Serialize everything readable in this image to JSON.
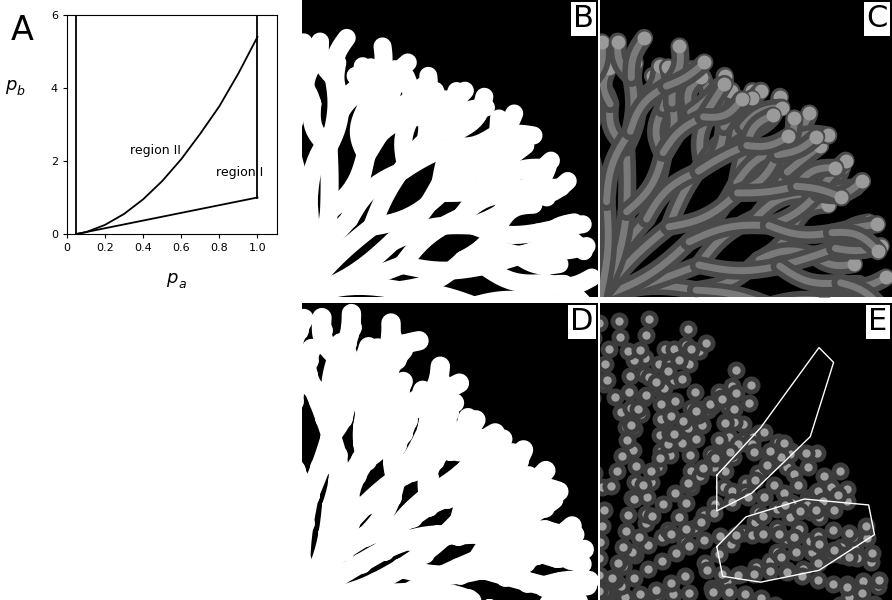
{
  "panel_labels": [
    "A",
    "B",
    "C",
    "D",
    "E"
  ],
  "chart_data": {
    "type": "line",
    "color": "#000000",
    "xlabel": {
      "text": "p",
      "subscript": "a"
    },
    "ylabel": {
      "text": "p",
      "subscript": "b"
    },
    "xlim": [
      0,
      1.1
    ],
    "ylim": [
      0,
      6
    ],
    "xticks": [
      0,
      0.2,
      0.4,
      0.6,
      0.8,
      {
        "value": 1.0,
        "label": "1.0"
      }
    ],
    "yticks": [
      0,
      2,
      4,
      6
    ],
    "annotations": [
      "region II",
      "region I"
    ],
    "series": [
      {
        "x": [
          0.05,
          0.05
        ],
        "values": [
          0,
          6
        ]
      },
      {
        "x": [
          1.0,
          1.0
        ],
        "values": [
          1.0,
          6
        ]
      },
      {
        "x": [
          0.05,
          1.0
        ],
        "values": [
          0,
          1.0
        ]
      },
      {
        "x": [
          0.05,
          0.1,
          0.2,
          0.3,
          0.4,
          0.5,
          0.6,
          0.7,
          0.8,
          0.9,
          1.0
        ],
        "values": [
          0,
          0.05,
          0.25,
          0.55,
          0.95,
          1.45,
          2.05,
          2.75,
          3.5,
          4.4,
          5.4
        ]
      }
    ]
  }
}
